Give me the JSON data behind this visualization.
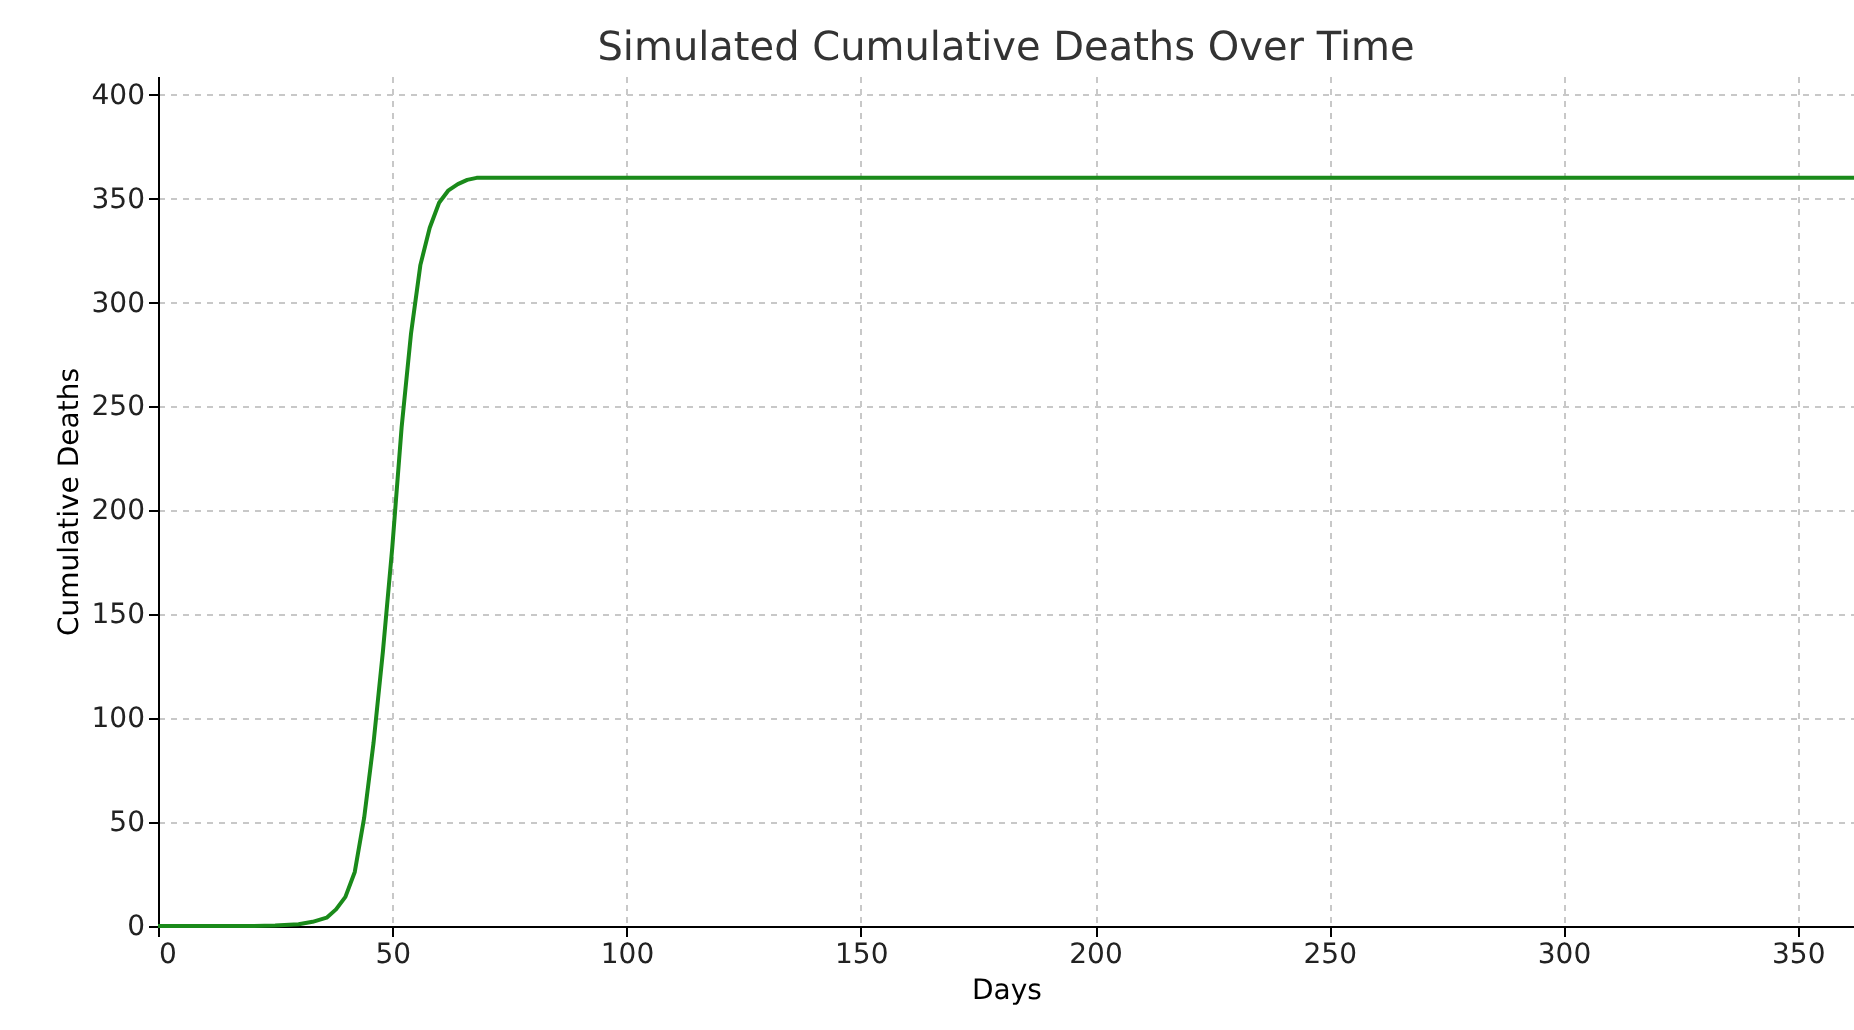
{
  "chart_data": {
    "type": "line",
    "title": "Simulated Cumulative Deaths Over Time",
    "xlabel": "Days",
    "ylabel": "Cumulative Deaths",
    "x": [
      0,
      10,
      20,
      25,
      30,
      33,
      36,
      38,
      40,
      42,
      44,
      46,
      48,
      50,
      52,
      54,
      56,
      58,
      60,
      62,
      64,
      66,
      68,
      70,
      75,
      80,
      100,
      150,
      200,
      250,
      300,
      362
    ],
    "series": [
      {
        "color": "#1a8a1a",
        "values": [
          0,
          0,
          0,
          0.2,
          0.8,
          2,
          4,
          8,
          14,
          26,
          52,
          88,
          132,
          182,
          240,
          285,
          318,
          336,
          348,
          354,
          357,
          359,
          360,
          360,
          360,
          360,
          360,
          360,
          360,
          360,
          360,
          360
        ]
      }
    ],
    "xlim": [
      0,
      362
    ],
    "ylim": [
      0,
      409
    ],
    "xticks": [
      0,
      50,
      100,
      150,
      200,
      250,
      300,
      350
    ],
    "yticks": [
      0,
      50,
      100,
      150,
      200,
      250,
      300,
      350,
      400
    ],
    "grid": true,
    "legend": false,
    "marker": "none",
    "line_style": "solid"
  }
}
